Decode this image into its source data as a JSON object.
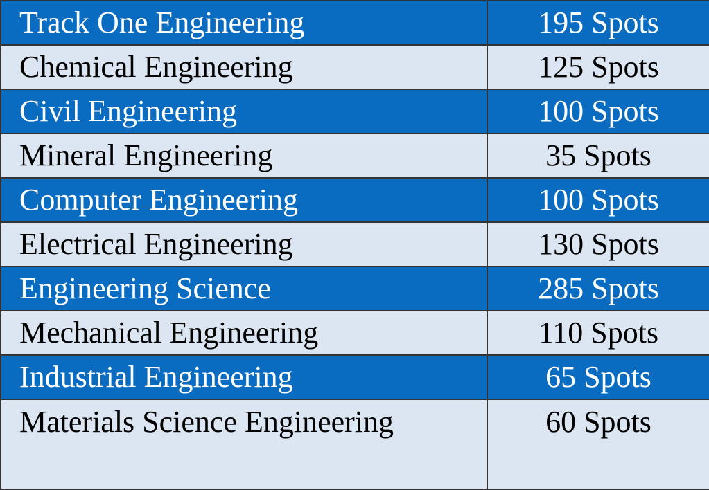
{
  "table": {
    "rows": [
      [
        "Track One Engineering",
        "195 Spots"
      ],
      [
        "Chemical Engineering",
        "125 Spots"
      ],
      [
        "Civil Engineering",
        "100 Spots"
      ],
      [
        "Mineral Engineering",
        "35 Spots"
      ],
      [
        "Computer Engineering",
        "100 Spots"
      ],
      [
        "Electrical Engineering",
        "130 Spots"
      ],
      [
        "Engineering Science",
        "285 Spots"
      ],
      [
        "Mechanical Engineering",
        "110 Spots"
      ],
      [
        "Industrial Engineering",
        "65 Spots"
      ],
      [
        "Materials Science Engineering",
        "60 Spots"
      ]
    ]
  }
}
